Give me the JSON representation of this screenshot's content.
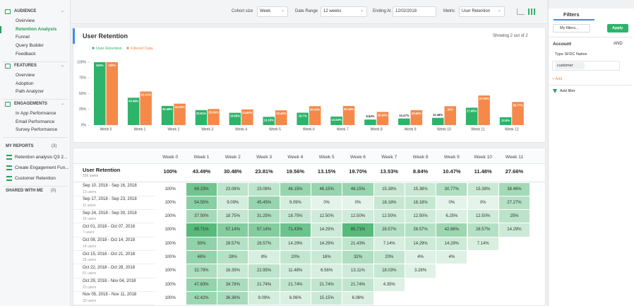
{
  "sidebar": {
    "sections": [
      {
        "title": "AUDIENCE",
        "items": [
          "Overview",
          "Retention Analysis",
          "Funnel",
          "Query Builder",
          "Feedback"
        ]
      },
      {
        "title": "FEATURES",
        "items": [
          "Overview",
          "Adoption",
          "Path Analyzer"
        ]
      },
      {
        "title": "ENGAGEMENTS",
        "items": [
          "In App Performance",
          "Email Performance",
          "Survey Performance"
        ]
      }
    ],
    "my_reports": {
      "title": "MY REPORTS",
      "count": "(3)",
      "items": [
        "Retention analysis Q3 2...",
        "Create Engagement Fun...",
        "Customer Retention"
      ]
    },
    "shared": {
      "title": "SHARED WITH ME",
      "count": "(0)"
    }
  },
  "toolbar": {
    "cohort_size_label": "Cohort size",
    "cohort_size": "Week",
    "date_range_label": "Date Range",
    "date_range": "12 weeks",
    "ending_at_label": "Ending At",
    "ending_at": "12/02/2018",
    "metric_label": "Metric",
    "metric": "User Retention"
  },
  "chart_data": {
    "type": "bar",
    "title": "User Retention",
    "subtitle": "Showing 2 out of 2",
    "categories": [
      "Week 0",
      "Week 1",
      "Week 2",
      "Week 3",
      "Week 4",
      "Week 5",
      "Week 6",
      "Week 7",
      "Week 8",
      "Week 9",
      "Week 10",
      "Week 11",
      "Week 12"
    ],
    "series": [
      {
        "name": "User Retention",
        "color": "#2db36a",
        "values": [
          100,
          43.49,
          30.48,
          23.81,
          19.56,
          13.15,
          19.7,
          13.53,
          8.84,
          10.47,
          11.48,
          27.66,
          12.5
        ],
        "value_labels": [
          "100%",
          "43.49%",
          "30.48%",
          "23.81%",
          "19.56%",
          "13.15%",
          "19.7%",
          "13.53%",
          "8.84%",
          "10.47%",
          "11.48%",
          "27.66%",
          "12.5%"
        ]
      },
      {
        "name": "Filtered Data",
        "color": "#f5894a",
        "values": [
          100,
          53.41,
          34.09,
          25.56,
          24.92,
          23.48,
          30.06,
          30.43,
          20.93,
          23.83,
          30,
          47.06,
          36.77
        ],
        "value_labels": [
          "100%",
          "53.41%",
          "34.09%",
          "25.56%",
          "24.92%",
          "23.48%",
          "30.06%",
          "30.43%",
          "20.93%",
          "23.83%",
          "30%",
          "47.06%",
          "36.77%"
        ]
      }
    ],
    "ylim": [
      0,
      100
    ],
    "yticks": [
      {
        "value": 0,
        "label": "0%"
      },
      {
        "value": 25,
        "label": "25%"
      },
      {
        "value": 50,
        "label": "50%"
      },
      {
        "value": 75,
        "label": "75%"
      },
      {
        "value": 100,
        "label": "100%"
      }
    ],
    "grid": false
  },
  "table": {
    "columns": [
      "Week 0",
      "Week 1",
      "Week 2",
      "Week 3",
      "Week 4",
      "Week 5",
      "Week 6",
      "Week 7",
      "Week 8",
      "Week 9",
      "Week 10",
      "Week 11"
    ],
    "summary": {
      "label": "User Retention",
      "users": "316 users",
      "cells": [
        "100%",
        "43.49%",
        "30.48%",
        "23.81%",
        "19.56%",
        "13.15%",
        "19.70%",
        "13.53%",
        "8.84%",
        "10.47%",
        "11.48%",
        "27.66%"
      ]
    },
    "rows": [
      {
        "label": "Sep 10, 2018 - Sep 16, 2018",
        "users": "13 users",
        "cells": [
          "100%",
          "69.23%",
          "23.08%",
          "23.08%",
          "46.15%",
          "46.15%",
          "46.15%",
          "15.38%",
          "15.38%",
          "30.77%",
          "15.38%",
          "38.46%"
        ]
      },
      {
        "label": "Sep 17, 2018 - Sep 23, 2018",
        "users": "11 users",
        "cells": [
          "100%",
          "54.55%",
          "9.09%",
          "45.45%",
          "9.09%",
          "0%",
          "0%",
          "18.18%",
          "18.18%",
          "0%",
          "0%",
          "27.27%"
        ]
      },
      {
        "label": "Sep 24, 2018 - Sep 30, 2018",
        "users": "16 users",
        "cells": [
          "100%",
          "37.50%",
          "18.75%",
          "31.25%",
          "18.75%",
          "12.50%",
          "12.50%",
          "12.50%",
          "12.50%",
          "6.25%",
          "12.50%",
          "25%"
        ]
      },
      {
        "label": "Oct 01, 2018 - Oct 07, 2018",
        "users": "7 users",
        "cells": [
          "100%",
          "85.71%",
          "57.14%",
          "57.14%",
          "71.43%",
          "14.29%",
          "85.71%",
          "28.57%",
          "28.57%",
          "42.86%",
          "28.57%",
          "14.29%"
        ]
      },
      {
        "label": "Oct 08, 2018 - Oct 14, 2018",
        "users": "14 users",
        "cells": [
          "100%",
          "50%",
          "28.57%",
          "28.57%",
          "14.29%",
          "14.29%",
          "21.43%",
          "7.14%",
          "14.29%",
          "14.29%",
          "7.14%"
        ]
      },
      {
        "label": "Oct 15, 2018 - Oct 21, 2018",
        "users": "25 users",
        "cells": [
          "100%",
          "48%",
          "28%",
          "8%",
          "20%",
          "16%",
          "32%",
          "20%",
          "4%",
          "4%"
        ]
      },
      {
        "label": "Oct 22, 2018 - Oct 28, 2018",
        "users": "61 users",
        "cells": [
          "100%",
          "32.79%",
          "16.39%",
          "22.95%",
          "11.48%",
          "6.56%",
          "13.11%",
          "18.03%",
          "3.28%"
        ]
      },
      {
        "label": "Oct 29, 2018 - Nov 04, 2018",
        "users": "23 users",
        "cells": [
          "100%",
          "47.83%",
          "34.78%",
          "21.74%",
          "21.74%",
          "21.74%",
          "21.74%",
          "4.35%"
        ]
      },
      {
        "label": "Nov 05, 2018 - Nov 11, 2018",
        "users": "33 users",
        "cells": [
          "100%",
          "42.42%",
          "36.36%",
          "9.09%",
          "6.06%",
          "15.15%",
          "6.06%"
        ]
      }
    ]
  },
  "filters": {
    "title": "Filters",
    "my_filters": "My filters...",
    "apply": "Apply",
    "account": "Account",
    "and": "AND",
    "type": "Type SFDC Native",
    "value": "customer",
    "add": "+ Add",
    "add_filter": "Add filter"
  }
}
